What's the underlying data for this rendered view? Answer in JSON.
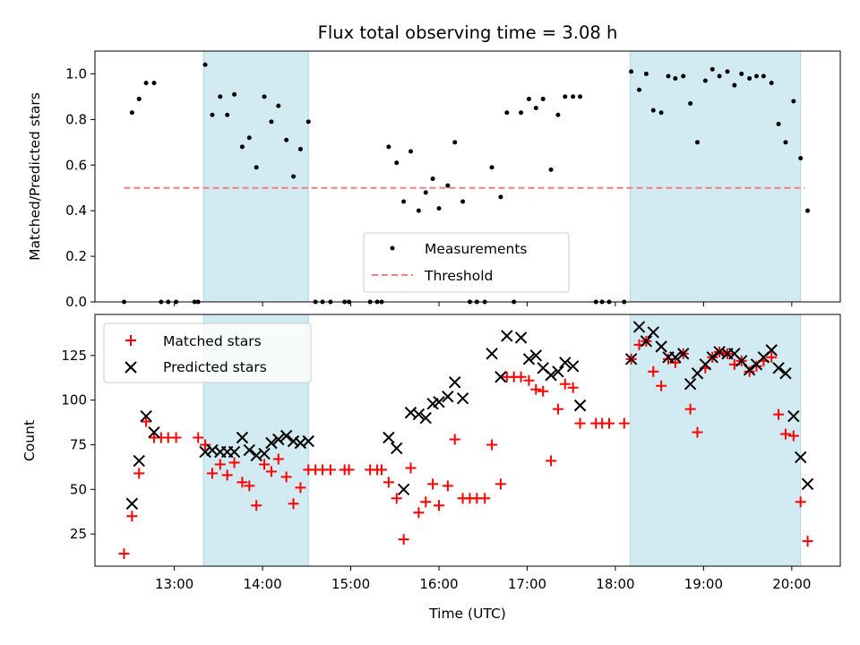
{
  "chart_data": [
    {
      "type": "scatter",
      "title": "Flux total observing time = 3.08 h",
      "xlabel": "",
      "ylabel": "Matched/Predicted stars",
      "ylim": [
        0,
        1.1
      ],
      "yticks": [
        "0.0",
        "0.2",
        "0.4",
        "0.6",
        "0.8",
        "1.0"
      ],
      "xlim_hours": [
        12.1,
        20.55
      ],
      "shaded_regions_hours": [
        [
          13.33,
          14.52
        ],
        [
          18.17,
          20.1
        ]
      ],
      "shade_color": "#add8e6",
      "threshold": 0.5,
      "threshold_x_hours": [
        12.43,
        20.15
      ],
      "threshold_color": "#f08080",
      "legend_position": "lower-center",
      "series": [
        {
          "name": "Measurements",
          "color": "#000000",
          "marker": "dot",
          "points": [
            [
              12.43,
              0.0
            ],
            [
              12.52,
              0.83
            ],
            [
              12.6,
              0.89
            ],
            [
              12.68,
              0.96
            ],
            [
              12.77,
              0.96
            ],
            [
              12.85,
              0.0
            ],
            [
              12.93,
              0.0
            ],
            [
              13.02,
              0.0
            ],
            [
              13.23,
              0.0
            ],
            [
              13.27,
              0.0
            ],
            [
              13.35,
              1.04
            ],
            [
              13.43,
              0.82
            ],
            [
              13.52,
              0.9
            ],
            [
              13.6,
              0.82
            ],
            [
              13.68,
              0.91
            ],
            [
              13.77,
              0.68
            ],
            [
              13.85,
              0.72
            ],
            [
              13.93,
              0.59
            ],
            [
              14.02,
              0.9
            ],
            [
              14.1,
              0.79
            ],
            [
              14.18,
              0.86
            ],
            [
              14.27,
              0.71
            ],
            [
              14.35,
              0.55
            ],
            [
              14.43,
              0.67
            ],
            [
              14.52,
              0.79
            ],
            [
              14.6,
              0.0
            ],
            [
              14.68,
              0.0
            ],
            [
              14.77,
              0.0
            ],
            [
              14.93,
              0.0
            ],
            [
              14.98,
              0.0
            ],
            [
              15.22,
              0.0
            ],
            [
              15.3,
              0.0
            ],
            [
              15.35,
              0.0
            ],
            [
              15.43,
              0.68
            ],
            [
              15.52,
              0.61
            ],
            [
              15.6,
              0.44
            ],
            [
              15.68,
              0.66
            ],
            [
              15.77,
              0.4
            ],
            [
              15.85,
              0.48
            ],
            [
              15.93,
              0.54
            ],
            [
              16.0,
              0.41
            ],
            [
              16.1,
              0.51
            ],
            [
              16.18,
              0.7
            ],
            [
              16.27,
              0.44
            ],
            [
              16.35,
              0.0
            ],
            [
              16.43,
              0.0
            ],
            [
              16.52,
              0.0
            ],
            [
              16.6,
              0.59
            ],
            [
              16.7,
              0.46
            ],
            [
              16.77,
              0.83
            ],
            [
              16.85,
              0.0
            ],
            [
              16.93,
              0.83
            ],
            [
              17.02,
              0.89
            ],
            [
              17.1,
              0.85
            ],
            [
              17.18,
              0.89
            ],
            [
              17.27,
              0.58
            ],
            [
              17.35,
              0.82
            ],
            [
              17.43,
              0.9
            ],
            [
              17.52,
              0.9
            ],
            [
              17.6,
              0.9
            ],
            [
              17.78,
              0.0
            ],
            [
              17.85,
              0.0
            ],
            [
              17.93,
              0.0
            ],
            [
              18.1,
              0.0
            ],
            [
              18.18,
              1.01
            ],
            [
              18.27,
              0.93
            ],
            [
              18.35,
              1.0
            ],
            [
              18.43,
              0.84
            ],
            [
              18.52,
              0.83
            ],
            [
              18.6,
              0.99
            ],
            [
              18.68,
              0.98
            ],
            [
              18.77,
              0.99
            ],
            [
              18.85,
              0.87
            ],
            [
              18.93,
              0.7
            ],
            [
              19.02,
              0.97
            ],
            [
              19.1,
              1.02
            ],
            [
              19.18,
              0.99
            ],
            [
              19.27,
              1.01
            ],
            [
              19.35,
              0.95
            ],
            [
              19.43,
              1.0
            ],
            [
              19.52,
              0.98
            ],
            [
              19.6,
              0.99
            ],
            [
              19.68,
              0.99
            ],
            [
              19.77,
              0.96
            ],
            [
              19.85,
              0.78
            ],
            [
              19.93,
              0.7
            ],
            [
              20.02,
              0.88
            ],
            [
              20.1,
              0.63
            ],
            [
              20.18,
              0.4
            ]
          ]
        },
        {
          "name": "Threshold",
          "color": "#f08080",
          "marker": "dashed-line"
        }
      ]
    },
    {
      "type": "scatter",
      "title": "",
      "xlabel": "Time (UTC)",
      "ylabel": "Count",
      "ylim": [
        7,
        148
      ],
      "yticks": [
        "25",
        "50",
        "75",
        "100",
        "125"
      ],
      "xticks": [
        "13:00",
        "14:00",
        "15:00",
        "16:00",
        "17:00",
        "18:00",
        "19:00",
        "20:00"
      ],
      "xlim_hours": [
        12.1,
        20.55
      ],
      "shaded_regions_hours": [
        [
          13.33,
          14.52
        ],
        [
          18.17,
          20.1
        ]
      ],
      "shade_color": "#add8e6",
      "legend_position": "upper-left",
      "series": [
        {
          "name": "Matched stars",
          "color": "#ff0000",
          "marker": "plus",
          "points": [
            [
              12.43,
              14
            ],
            [
              12.52,
              35
            ],
            [
              12.6,
              59
            ],
            [
              12.68,
              88
            ],
            [
              12.77,
              79
            ],
            [
              12.85,
              79
            ],
            [
              12.93,
              79
            ],
            [
              13.02,
              79
            ],
            [
              13.27,
              79
            ],
            [
              13.35,
              75
            ],
            [
              13.43,
              59
            ],
            [
              13.52,
              64
            ],
            [
              13.6,
              58
            ],
            [
              13.68,
              65
            ],
            [
              13.77,
              54
            ],
            [
              13.85,
              52
            ],
            [
              13.93,
              41
            ],
            [
              14.02,
              64
            ],
            [
              14.1,
              60
            ],
            [
              14.18,
              67
            ],
            [
              14.27,
              57
            ],
            [
              14.35,
              42
            ],
            [
              14.43,
              51
            ],
            [
              14.52,
              61
            ],
            [
              14.6,
              61
            ],
            [
              14.68,
              61
            ],
            [
              14.77,
              61
            ],
            [
              14.93,
              61
            ],
            [
              14.98,
              61
            ],
            [
              15.22,
              61
            ],
            [
              15.3,
              61
            ],
            [
              15.35,
              61
            ],
            [
              15.43,
              54
            ],
            [
              15.52,
              45
            ],
            [
              15.6,
              22
            ],
            [
              15.68,
              62
            ],
            [
              15.77,
              37
            ],
            [
              15.85,
              43
            ],
            [
              15.93,
              53
            ],
            [
              16.0,
              41
            ],
            [
              16.1,
              52
            ],
            [
              16.18,
              78
            ],
            [
              16.27,
              45
            ],
            [
              16.35,
              45
            ],
            [
              16.43,
              45
            ],
            [
              16.52,
              45
            ],
            [
              16.6,
              75
            ],
            [
              16.7,
              53
            ],
            [
              16.77,
              113
            ],
            [
              16.85,
              113
            ],
            [
              16.93,
              113
            ],
            [
              17.02,
              111
            ],
            [
              17.1,
              106
            ],
            [
              17.18,
              105
            ],
            [
              17.27,
              66
            ],
            [
              17.35,
              95
            ],
            [
              17.43,
              109
            ],
            [
              17.52,
              107
            ],
            [
              17.6,
              87
            ],
            [
              17.78,
              87
            ],
            [
              17.85,
              87
            ],
            [
              17.93,
              87
            ],
            [
              18.1,
              87
            ],
            [
              18.18,
              123
            ],
            [
              18.27,
              131
            ],
            [
              18.35,
              133
            ],
            [
              18.43,
              116
            ],
            [
              18.52,
              108
            ],
            [
              18.6,
              123
            ],
            [
              18.68,
              121
            ],
            [
              18.77,
              126
            ],
            [
              18.85,
              95
            ],
            [
              18.93,
              82
            ],
            [
              19.02,
              118
            ],
            [
              19.1,
              124
            ],
            [
              19.18,
              127
            ],
            [
              19.27,
              126
            ],
            [
              19.35,
              120
            ],
            [
              19.43,
              122
            ],
            [
              19.52,
              116
            ],
            [
              19.6,
              119
            ],
            [
              19.68,
              122
            ],
            [
              19.77,
              124
            ],
            [
              19.85,
              92
            ],
            [
              19.93,
              81
            ],
            [
              20.02,
              80
            ],
            [
              20.1,
              43
            ],
            [
              20.18,
              21
            ]
          ]
        },
        {
          "name": "Predicted stars",
          "color": "#000000",
          "marker": "x",
          "points": [
            [
              12.52,
              42
            ],
            [
              12.6,
              66
            ],
            [
              12.68,
              91
            ],
            [
              12.77,
              82
            ],
            [
              13.35,
              71
            ],
            [
              13.43,
              72
            ],
            [
              13.52,
              71
            ],
            [
              13.6,
              71
            ],
            [
              13.68,
              71
            ],
            [
              13.77,
              79
            ],
            [
              13.85,
              72
            ],
            [
              13.93,
              69
            ],
            [
              14.02,
              70
            ],
            [
              14.1,
              76
            ],
            [
              14.18,
              78
            ],
            [
              14.27,
              80
            ],
            [
              14.35,
              77
            ],
            [
              14.43,
              76
            ],
            [
              14.52,
              77
            ],
            [
              15.43,
              79
            ],
            [
              15.52,
              73
            ],
            [
              15.6,
              50
            ],
            [
              15.68,
              93
            ],
            [
              15.77,
              92
            ],
            [
              15.85,
              90
            ],
            [
              15.93,
              98
            ],
            [
              16.0,
              99
            ],
            [
              16.1,
              102
            ],
            [
              16.18,
              110
            ],
            [
              16.27,
              101
            ],
            [
              16.6,
              126
            ],
            [
              16.7,
              113
            ],
            [
              16.77,
              136
            ],
            [
              16.93,
              135
            ],
            [
              17.02,
              123
            ],
            [
              17.1,
              125
            ],
            [
              17.18,
              118
            ],
            [
              17.27,
              114
            ],
            [
              17.35,
              116
            ],
            [
              17.43,
              121
            ],
            [
              17.52,
              119
            ],
            [
              17.6,
              97
            ],
            [
              18.18,
              123
            ],
            [
              18.27,
              141
            ],
            [
              18.35,
              133
            ],
            [
              18.43,
              138
            ],
            [
              18.52,
              130
            ],
            [
              18.6,
              124
            ],
            [
              18.68,
              124
            ],
            [
              18.77,
              126
            ],
            [
              18.85,
              109
            ],
            [
              18.93,
              115
            ],
            [
              19.02,
              120
            ],
            [
              19.1,
              124
            ],
            [
              19.18,
              127
            ],
            [
              19.27,
              126
            ],
            [
              19.35,
              126
            ],
            [
              19.43,
              122
            ],
            [
              19.52,
              117
            ],
            [
              19.6,
              120
            ],
            [
              19.68,
              124
            ],
            [
              19.77,
              128
            ],
            [
              19.85,
              118
            ],
            [
              19.93,
              115
            ],
            [
              20.02,
              91
            ],
            [
              20.1,
              68
            ],
            [
              20.18,
              53
            ]
          ]
        }
      ]
    }
  ]
}
